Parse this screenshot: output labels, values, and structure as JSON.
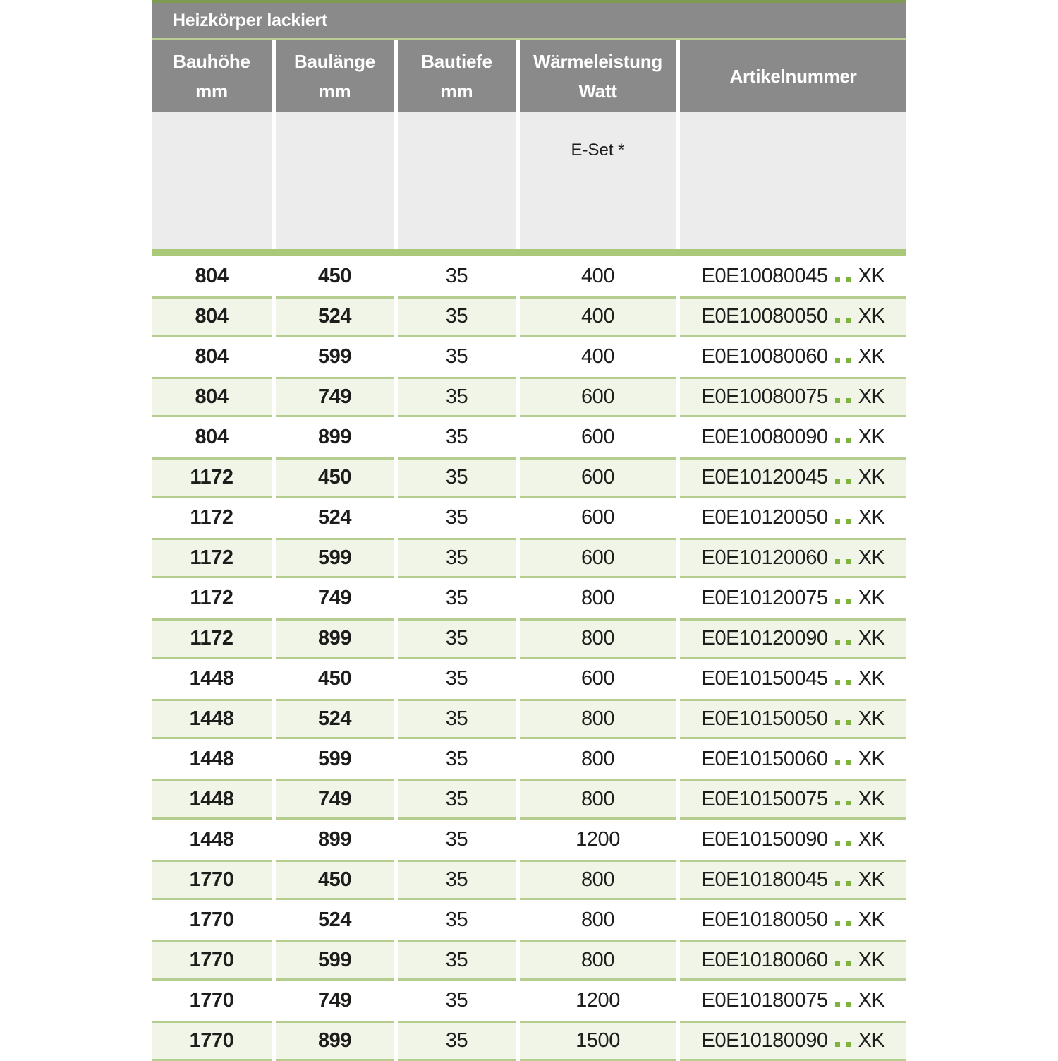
{
  "table": {
    "title": "Heizkörper lackiert",
    "columns": [
      {
        "id": "bauhoehe",
        "label_line1": "Bauhöhe",
        "label_line2": "mm"
      },
      {
        "id": "baulaenge",
        "label_line1": "Baulänge",
        "label_line2": "mm"
      },
      {
        "id": "bautiefe",
        "label_line1": "Bautiefe",
        "label_line2": "mm"
      },
      {
        "id": "waermeleistung",
        "label_line1": "Wärmeleistung",
        "label_line2": "Watt"
      },
      {
        "id": "artikelnummer",
        "label_line1": "Artikelnummer",
        "label_line2": ""
      }
    ],
    "subheader": {
      "waermeleistung_note": "E-Set *"
    },
    "artikel_placeholder_dots": 2,
    "rows": [
      {
        "bauhoehe": "804",
        "baulaenge": "450",
        "bautiefe": "35",
        "watt": "400",
        "artikel_code": "E0E10080045",
        "artikel_suffix": "XK"
      },
      {
        "bauhoehe": "804",
        "baulaenge": "524",
        "bautiefe": "35",
        "watt": "400",
        "artikel_code": "E0E10080050",
        "artikel_suffix": "XK"
      },
      {
        "bauhoehe": "804",
        "baulaenge": "599",
        "bautiefe": "35",
        "watt": "400",
        "artikel_code": "E0E10080060",
        "artikel_suffix": "XK"
      },
      {
        "bauhoehe": "804",
        "baulaenge": "749",
        "bautiefe": "35",
        "watt": "600",
        "artikel_code": "E0E10080075",
        "artikel_suffix": "XK"
      },
      {
        "bauhoehe": "804",
        "baulaenge": "899",
        "bautiefe": "35",
        "watt": "600",
        "artikel_code": "E0E10080090",
        "artikel_suffix": "XK"
      },
      {
        "bauhoehe": "1172",
        "baulaenge": "450",
        "bautiefe": "35",
        "watt": "600",
        "artikel_code": "E0E10120045",
        "artikel_suffix": "XK"
      },
      {
        "bauhoehe": "1172",
        "baulaenge": "524",
        "bautiefe": "35",
        "watt": "600",
        "artikel_code": "E0E10120050",
        "artikel_suffix": "XK"
      },
      {
        "bauhoehe": "1172",
        "baulaenge": "599",
        "bautiefe": "35",
        "watt": "600",
        "artikel_code": "E0E10120060",
        "artikel_suffix": "XK"
      },
      {
        "bauhoehe": "1172",
        "baulaenge": "749",
        "bautiefe": "35",
        "watt": "800",
        "artikel_code": "E0E10120075",
        "artikel_suffix": "XK"
      },
      {
        "bauhoehe": "1172",
        "baulaenge": "899",
        "bautiefe": "35",
        "watt": "800",
        "artikel_code": "E0E10120090",
        "artikel_suffix": "XK"
      },
      {
        "bauhoehe": "1448",
        "baulaenge": "450",
        "bautiefe": "35",
        "watt": "600",
        "artikel_code": "E0E10150045",
        "artikel_suffix": "XK"
      },
      {
        "bauhoehe": "1448",
        "baulaenge": "524",
        "bautiefe": "35",
        "watt": "800",
        "artikel_code": "E0E10150050",
        "artikel_suffix": "XK"
      },
      {
        "bauhoehe": "1448",
        "baulaenge": "599",
        "bautiefe": "35",
        "watt": "800",
        "artikel_code": "E0E10150060",
        "artikel_suffix": "XK"
      },
      {
        "bauhoehe": "1448",
        "baulaenge": "749",
        "bautiefe": "35",
        "watt": "800",
        "artikel_code": "E0E10150075",
        "artikel_suffix": "XK"
      },
      {
        "bauhoehe": "1448",
        "baulaenge": "899",
        "bautiefe": "35",
        "watt": "1200",
        "artikel_code": "E0E10150090",
        "artikel_suffix": "XK"
      },
      {
        "bauhoehe": "1770",
        "baulaenge": "450",
        "bautiefe": "35",
        "watt": "800",
        "artikel_code": "E0E10180045",
        "artikel_suffix": "XK"
      },
      {
        "bauhoehe": "1770",
        "baulaenge": "524",
        "bautiefe": "35",
        "watt": "800",
        "artikel_code": "E0E10180050",
        "artikel_suffix": "XK"
      },
      {
        "bauhoehe": "1770",
        "baulaenge": "599",
        "bautiefe": "35",
        "watt": "800",
        "artikel_code": "E0E10180060",
        "artikel_suffix": "XK"
      },
      {
        "bauhoehe": "1770",
        "baulaenge": "749",
        "bautiefe": "35",
        "watt": "1200",
        "artikel_code": "E0E10180075",
        "artikel_suffix": "XK"
      },
      {
        "bauhoehe": "1770",
        "baulaenge": "899",
        "bautiefe": "35",
        "watt": "1500",
        "artikel_code": "E0E10180090",
        "artikel_suffix": "XK"
      }
    ]
  },
  "colors": {
    "header_gray": "#8a8a8a",
    "subheader_gray": "#ececec",
    "top_line_green": "#7d9c52",
    "title_underline_green": "#b9cc92",
    "separator_green": "#a9c878",
    "row_stripe_bg": "#f1f5e8",
    "row_stripe_border": "#b6cd90",
    "dot_green": "#7eb43c",
    "text_dark": "#1d1d1b"
  }
}
